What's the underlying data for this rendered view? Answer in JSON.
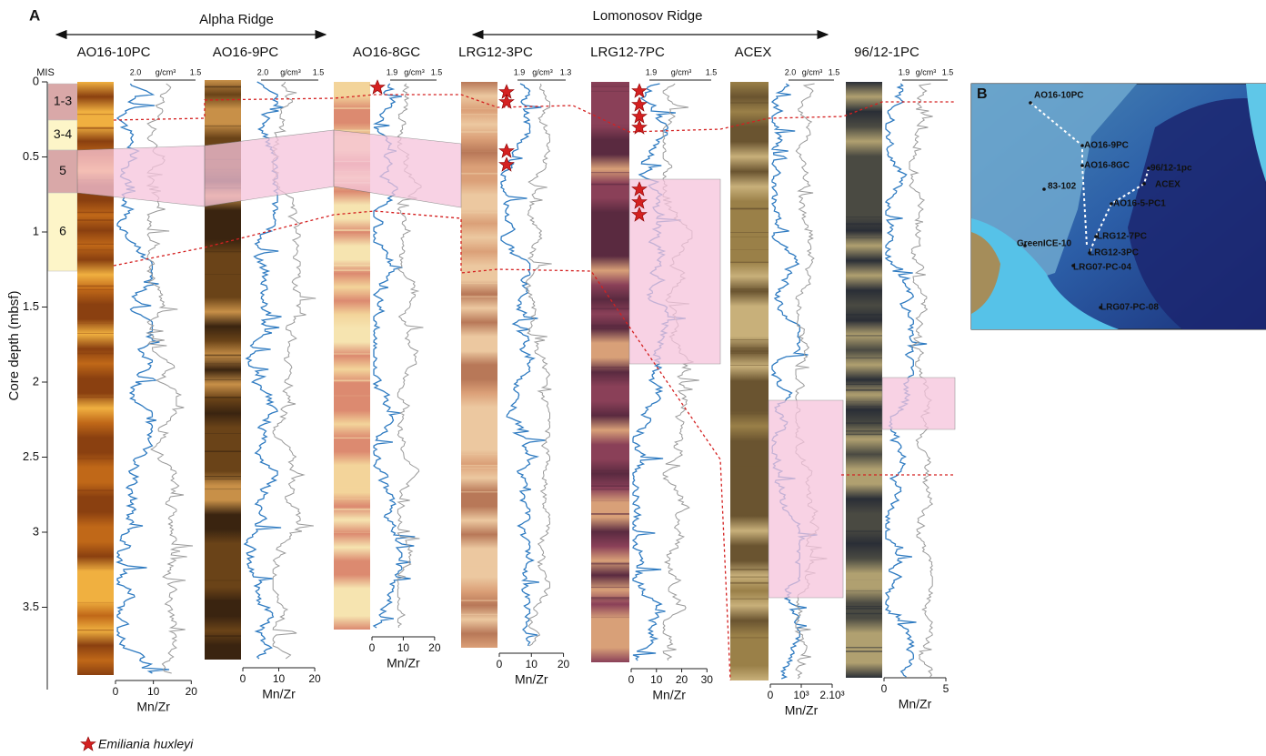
{
  "panel_a": {
    "label": "A",
    "regions": [
      "Alpha Ridge",
      "Lomonosov Ridge"
    ],
    "y_axis": {
      "title": "Core depth (mbsf)",
      "ticks": [
        0,
        0.5,
        1,
        1.5,
        2,
        2.5,
        3,
        3.5
      ]
    },
    "mis": {
      "title": "MIS",
      "stages": [
        "1-3",
        "3-4",
        "5",
        "6"
      ]
    },
    "density_unit": "g/cm³",
    "mnzr_label": "Mn/Zr",
    "cores": [
      {
        "name": "AO16-10PC",
        "density_ticks": [
          "2.0",
          "1.5"
        ],
        "mnzr_ticks": [
          "0",
          "10",
          "20"
        ]
      },
      {
        "name": "AO16-9PC",
        "density_ticks": [
          "2.0",
          "1.5"
        ],
        "mnzr_ticks": [
          "0",
          "10",
          "20"
        ]
      },
      {
        "name": "AO16-8GC",
        "density_ticks": [
          "1.9",
          "1.5"
        ],
        "mnzr_ticks": [
          "0",
          "10",
          "20"
        ]
      },
      {
        "name": "LRG12-3PC",
        "density_ticks": [
          "1.9",
          "1.3"
        ],
        "mnzr_ticks": [
          "0",
          "10",
          "20"
        ]
      },
      {
        "name": "LRG12-7PC",
        "density_ticks": [
          "1.9",
          "1.5"
        ],
        "mnzr_ticks": [
          "0",
          "10",
          "20",
          "30"
        ]
      },
      {
        "name": "ACEX",
        "density_ticks": [
          "2.0",
          "1.5"
        ],
        "mnzr_ticks": [
          "0",
          "10³",
          "2.10³"
        ]
      },
      {
        "name": "96/12-1PC",
        "density_ticks": [
          "1.9",
          "1.5"
        ],
        "mnzr_ticks": [
          "0",
          "5"
        ]
      }
    ]
  },
  "legend": "Emiliania huxleyi",
  "panel_b": {
    "label": "B",
    "sites": [
      "AO16-10PC",
      "AO16-9PC",
      "AO16-8GC",
      "96/12-1pc",
      "ACEX",
      "83-102",
      "AO16-5-PC1",
      "LRG12-7PC",
      "GreenICE-10",
      "LRG12-3PC",
      "LRG07-PC-04",
      "LRG07-PC-08"
    ]
  }
}
